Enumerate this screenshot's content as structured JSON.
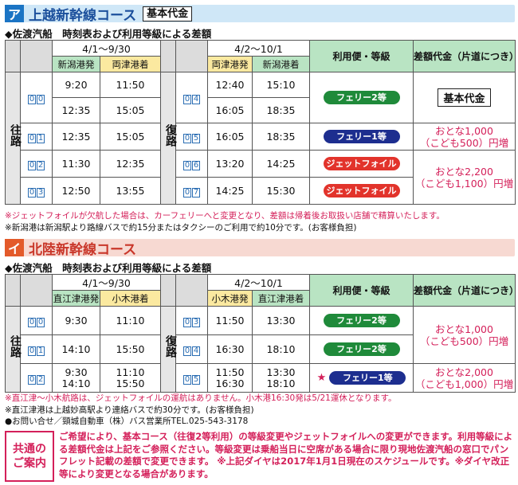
{
  "sectionA": {
    "tag": "ア",
    "title": "上越新幹線コース",
    "badge": "基本代金",
    "subtitle": "◆佐渡汽船　時刻表および利用等級による差額",
    "outbound_label": "往路",
    "return_label": "復路",
    "left_dates": "4/1～9/30",
    "right_dates": "4/2～10/1",
    "left_from": "新潟港発",
    "left_to": "両津港着",
    "right_from": "両津港発",
    "right_to": "新潟港着",
    "class_header": "利用便・等級",
    "fare_header": "差額代金（片道につき）",
    "rows": [
      {
        "lnum": [
          "0",
          "0"
        ],
        "ldep": "9:20",
        "larr": "11:50",
        "rnum": [
          "0",
          "4"
        ],
        "rdep": "12:40",
        "rarr": "15:10",
        "class": "フェリー2等",
        "fare": "基本代金"
      },
      {
        "lnum": [
          "",
          ""
        ],
        "ldep": "12:35",
        "larr": "15:05",
        "rnum": [
          "",
          ""
        ],
        "rdep": "16:05",
        "rarr": "18:35",
        "class": "",
        "fare": ""
      },
      {
        "lnum": [
          "0",
          "1"
        ],
        "ldep": "12:35",
        "larr": "15:05",
        "rnum": [
          "0",
          "5"
        ],
        "rdep": "16:05",
        "rarr": "18:35",
        "class": "フェリー1等",
        "fare": "おとな1,000\n（こども500）円増"
      },
      {
        "lnum": [
          "0",
          "2"
        ],
        "ldep": "11:30",
        "larr": "12:35",
        "rnum": [
          "0",
          "6"
        ],
        "rdep": "13:20",
        "rarr": "14:25",
        "class": "ジェットフォイル",
        "fare": "おとな2,200\n（こども1,100）円増"
      },
      {
        "lnum": [
          "0",
          "3"
        ],
        "ldep": "12:50",
        "larr": "13:55",
        "rnum": [
          "0",
          "7"
        ],
        "rdep": "14:25",
        "rarr": "15:30",
        "class": "ジェットフォイル",
        "fare": ""
      }
    ],
    "notes": [
      "※ジェットフォイルが欠航した場合は、カーフェリーへと変更となり、差額は帰着後お取扱い店舗で精算いたします。",
      "※新潟港は新潟駅より路線バスで約15分またはタクシーのご利用で約10分です。(お客様負担)"
    ]
  },
  "sectionB": {
    "tag": "イ",
    "title": "北陸新幹線コース",
    "subtitle": "◆佐渡汽船　時刻表および利用等級による差額",
    "outbound_label": "往路",
    "return_label": "復路",
    "left_dates": "4/1～9/30",
    "right_dates": "4/2～10/1",
    "left_from": "直江津港発",
    "left_to": "小木港着",
    "right_from": "小木港発",
    "right_to": "直江津港着",
    "class_header": "利用便・等級",
    "fare_header": "差額代金（片道につき）",
    "rows": [
      {
        "lnum": [
          "0",
          "0"
        ],
        "ldep": "9:30",
        "larr": "11:10",
        "rnum": [
          "0",
          "3"
        ],
        "rdep": "11:50",
        "rarr": "13:30",
        "class": "フェリー2等",
        "fare": "おとな1,000\n（こども500）円増"
      },
      {
        "lnum": [
          "0",
          "1"
        ],
        "ldep": "14:10",
        "larr": "15:50",
        "rnum": [
          "0",
          "4"
        ],
        "rdep": "16:30",
        "rarr": "18:10",
        "class": "フェリー2等",
        "fare": ""
      },
      {
        "lnum": [
          "0",
          "2"
        ],
        "ldep": "9:30\n14:10",
        "larr": "11:10\n15:50",
        "rnum": [
          "0",
          "5"
        ],
        "rdep": "11:50\n16:30",
        "rarr": "13:30\n18:10",
        "class": "フェリー1等",
        "fare": "おとな2,000\n（こども1,000）円増"
      }
    ],
    "star": "★",
    "notes_red": "※直江津～小木航路は、ジェットフォイルの運航はありません。小木港16:30発は5/21運休となります。",
    "notes": [
      "※直江津港は上越妙高駅より連絡バスで約30分です。(お客様負担)",
      "●お問い合せ／頸城自動車（株）バス営業所TEL.025-543-3178"
    ]
  },
  "common": {
    "label_1": "共通の",
    "label_2": "ご案内",
    "text": "ご希望により、基本コース（往復2等利用）の等級変更やジェットフォイルへの変更ができます。利用等級による差額代金は上記をご参照ください。等級変更は乗船当日に空席がある場合に限り現地佐渡汽船の窓口でパンフレット記載の差額で変更できます。 ※上記ダイヤは2017年1月1日現在のスケジュールです。※ダイヤ改正等により変更となる場合があります。"
  },
  "colors": {
    "orange": "#f39a27",
    "header_bg": "#cfe7f7",
    "header_bg_b": "#f7d9d2",
    "pink": "#d4205a",
    "green": "#1f8a3a",
    "navy": "#1d2e8f",
    "red": "#e2332b"
  }
}
